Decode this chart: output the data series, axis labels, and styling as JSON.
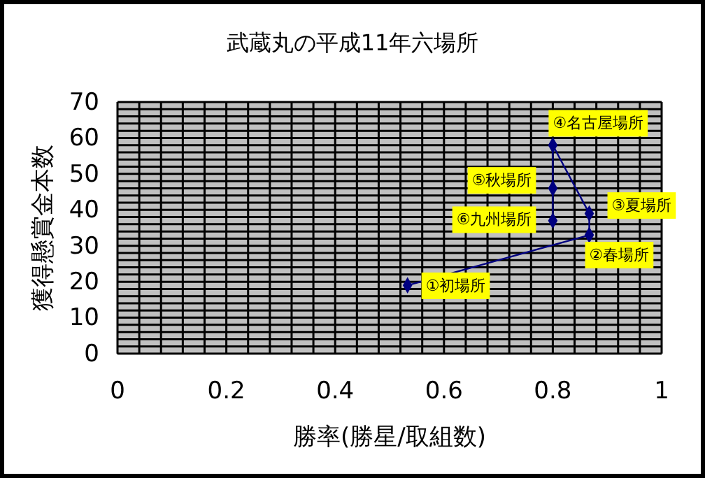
{
  "chart_data": {
    "type": "line",
    "title": "武蔵丸の平成11年六場所",
    "xlabel": "勝率(勝星/取組数)",
    "ylabel": "獲得懸賞金本数",
    "x": [
      0.533,
      0.867,
      0.867,
      0.8,
      0.8,
      0.8
    ],
    "series": [
      {
        "color": "#000080",
        "values": [
          19,
          33,
          39,
          58,
          46,
          37
        ]
      }
    ],
    "marker": "diamond",
    "line_style": "solid",
    "grid": true,
    "xlim": [
      0,
      1
    ],
    "ylim": [
      0,
      70
    ],
    "xticks": [
      0,
      {
        "value": 0.04,
        "label": null
      },
      {
        "value": 0.08,
        "label": null
      },
      {
        "value": 0.12,
        "label": null
      },
      {
        "value": 0.16,
        "label": null
      },
      0.2,
      {
        "value": 0.24,
        "label": null
      },
      {
        "value": 0.28,
        "label": null
      },
      {
        "value": 0.32,
        "label": null
      },
      {
        "value": 0.36,
        "label": null
      },
      0.4,
      {
        "value": 0.44,
        "label": null
      },
      {
        "value": 0.48,
        "label": null
      },
      {
        "value": 0.52,
        "label": null
      },
      {
        "value": 0.56,
        "label": null
      },
      0.6,
      {
        "value": 0.64,
        "label": null
      },
      {
        "value": 0.68,
        "label": null
      },
      {
        "value": 0.72,
        "label": null
      },
      {
        "value": 0.76,
        "label": null
      },
      0.8,
      {
        "value": 0.84,
        "label": null
      },
      {
        "value": 0.88,
        "label": null
      },
      {
        "value": 0.92,
        "label": null
      },
      {
        "value": 0.96,
        "label": null
      },
      1
    ],
    "yticks": [
      0,
      {
        "value": 2,
        "label": null
      },
      {
        "value": 4,
        "label": null
      },
      {
        "value": 6,
        "label": null
      },
      {
        "value": 8,
        "label": null
      },
      10,
      {
        "value": 12,
        "label": null
      },
      {
        "value": 14,
        "label": null
      },
      {
        "value": 16,
        "label": null
      },
      {
        "value": 18,
        "label": null
      },
      20,
      {
        "value": 22,
        "label": null
      },
      {
        "value": 24,
        "label": null
      },
      {
        "value": 26,
        "label": null
      },
      {
        "value": 28,
        "label": null
      },
      30,
      {
        "value": 32,
        "label": null
      },
      {
        "value": 34,
        "label": null
      },
      {
        "value": 36,
        "label": null
      },
      {
        "value": 38,
        "label": null
      },
      40,
      {
        "value": 42,
        "label": null
      },
      {
        "value": 44,
        "label": null
      },
      {
        "value": 46,
        "label": null
      },
      {
        "value": 48,
        "label": null
      },
      50,
      {
        "value": 52,
        "label": null
      },
      {
        "value": 54,
        "label": null
      },
      {
        "value": 56,
        "label": null
      },
      {
        "value": 58,
        "label": null
      },
      60,
      {
        "value": 62,
        "label": null
      },
      {
        "value": 64,
        "label": null
      },
      {
        "value": 66,
        "label": null
      },
      {
        "value": 68,
        "label": null
      },
      70
    ],
    "annotations": [
      {
        "text": "①初場所",
        "x": 0.533,
        "y": 19
      },
      {
        "text": "②春場所",
        "x": 0.867,
        "y": 33
      },
      {
        "text": "③夏場所",
        "x": 0.867,
        "y": 39
      },
      {
        "text": "④名古屋場所",
        "x": 0.8,
        "y": 58
      },
      {
        "text": "⑤秋場所",
        "x": 0.8,
        "y": 46
      },
      {
        "text": "⑥九州場所",
        "x": 0.8,
        "y": 37
      }
    ]
  }
}
